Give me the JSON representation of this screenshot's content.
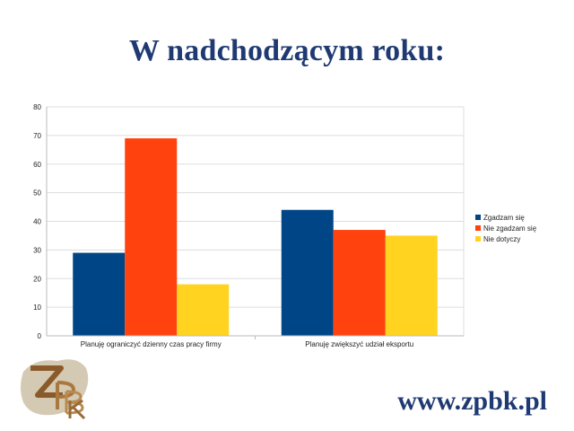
{
  "slide": {
    "title": "W nadchodzącym roku:",
    "url": "www.zpbk.pl",
    "logo_text": "ZPBK"
  },
  "colors": {
    "title": "#1f3a73",
    "grid": "#dddddd",
    "axis": "#bbbbbb"
  },
  "chart_data": {
    "type": "bar",
    "title": "",
    "xlabel": "",
    "ylabel": "",
    "ylim": [
      0,
      80
    ],
    "yticks": [
      0,
      10,
      20,
      30,
      40,
      50,
      60,
      70,
      80
    ],
    "grid": true,
    "legend_position": "right",
    "categories": [
      "Planuję ograniczyć dzienny czas pracy firmy",
      "Planuję zwiększyć udział eksportu"
    ],
    "series": [
      {
        "name": "Zgadzam się",
        "color": "#004586",
        "values": [
          29,
          44
        ]
      },
      {
        "name": "Nie zgadzam się",
        "color": "#ff420e",
        "values": [
          69,
          37
        ]
      },
      {
        "name": "Nie dotyczy",
        "color": "#ffd320",
        "values": [
          18,
          35
        ]
      }
    ]
  }
}
